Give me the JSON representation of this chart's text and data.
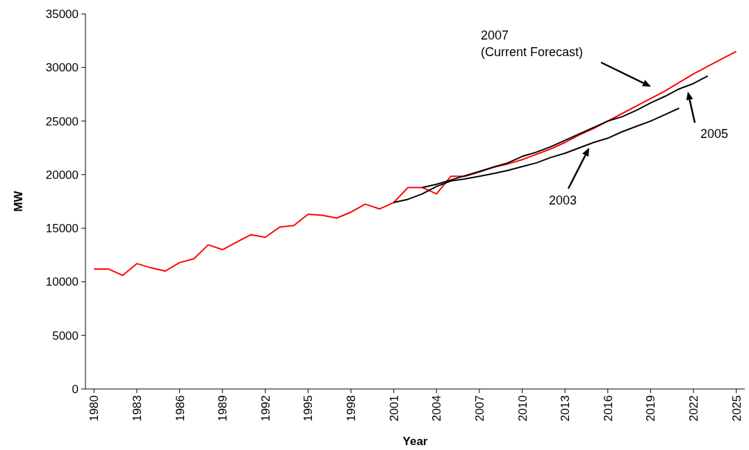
{
  "chart_data": {
    "type": "line",
    "xlabel": "Year",
    "ylabel": "MW",
    "xlim": [
      1979.4,
      2025.6
    ],
    "xticks": [
      1980,
      1983,
      1986,
      1989,
      1992,
      1995,
      1998,
      2001,
      2004,
      2007,
      2010,
      2013,
      2016,
      2019,
      2022,
      2025
    ],
    "ylim": [
      0,
      35000
    ],
    "yticks": [
      0,
      5000,
      10000,
      15000,
      20000,
      25000,
      30000,
      35000
    ],
    "grid": false,
    "annotations": [
      "2007\n(Current Forecast)",
      "2003",
      "2005"
    ],
    "marker": "none",
    "line_style": "solid",
    "series": [
      {
        "color": "#ff0000",
        "x": [
          1980,
          1981,
          1982,
          1983,
          1984,
          1985,
          1986,
          1987,
          1988,
          1989,
          1990,
          1991,
          1992,
          1993,
          1994,
          1995,
          1996,
          1997,
          1998,
          1999,
          2000,
          2001,
          2002,
          2003,
          2004,
          2005,
          2006,
          2007,
          2008,
          2009,
          2010,
          2011,
          2012,
          2013,
          2014,
          2015,
          2016,
          2017,
          2018,
          2019,
          2020,
          2021,
          2022,
          2023,
          2024,
          2025
        ],
        "values": [
          11200,
          11200,
          10600,
          11700,
          11300,
          11000,
          11800,
          12150,
          13450,
          13000,
          13700,
          14400,
          14150,
          15100,
          15250,
          16300,
          16200,
          15950,
          16500,
          17250,
          16800,
          17400,
          18800,
          18800,
          18200,
          19850,
          19850,
          20250,
          20700,
          21000,
          21400,
          21900,
          22400,
          23000,
          23700,
          24300,
          25000,
          25700,
          26400,
          27100,
          27800,
          28600,
          29400,
          30100,
          30800,
          31500
        ]
      },
      {
        "color": "#000000",
        "x": [
          2001,
          2002,
          2003,
          2004,
          2005,
          2006,
          2007,
          2008,
          2009,
          2010,
          2011,
          2012,
          2013,
          2014,
          2015,
          2016,
          2017,
          2018,
          2019,
          2020,
          2021
        ],
        "values": [
          17400,
          17700,
          18200,
          18900,
          19400,
          19600,
          19850,
          20100,
          20400,
          20750,
          21100,
          21600,
          22000,
          22500,
          23000,
          23400,
          24000,
          24500,
          25000,
          25600,
          26200
        ]
      },
      {
        "color": "#000000",
        "x": [
          2003,
          2004,
          2005,
          2006,
          2007,
          2008,
          2009,
          2010,
          2011,
          2012,
          2013,
          2014,
          2015,
          2016,
          2017,
          2018,
          2019,
          2020,
          2021,
          2022,
          2023
        ],
        "values": [
          18800,
          19100,
          19500,
          19900,
          20300,
          20700,
          21100,
          21700,
          22100,
          22600,
          23200,
          23800,
          24400,
          25000,
          25400,
          26000,
          26700,
          27300,
          28000,
          28500,
          29200
        ]
      }
    ]
  }
}
